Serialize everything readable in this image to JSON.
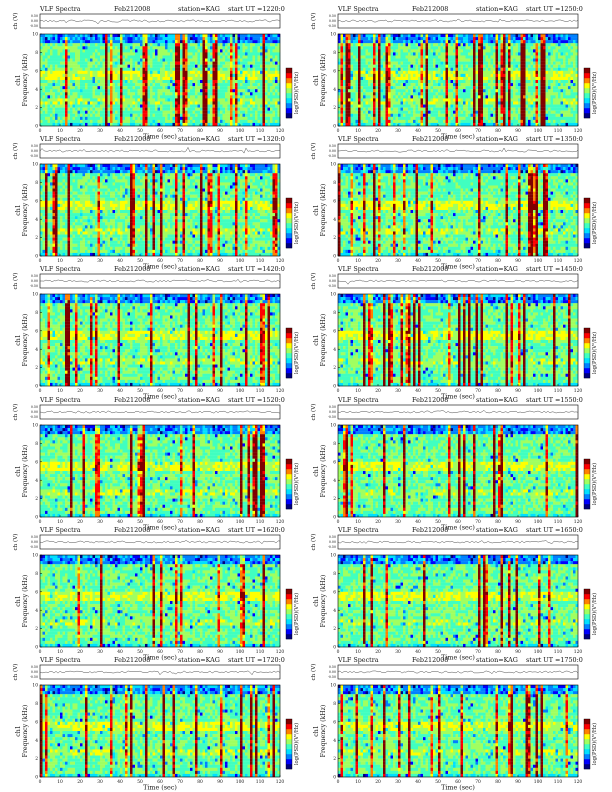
{
  "header_common": {
    "prefix": "VLF Spectra",
    "date": "Feb212008",
    "station": "station=KAG"
  },
  "chart_data": [
    {
      "type": "heatmap",
      "title_ut": "start UT =1220:0",
      "ylabel": "Frequency (kHz)",
      "ylabel_top": "ch1",
      "xlabel": "Time (sec)",
      "xlim": [
        0,
        120
      ],
      "ylim": [
        0,
        10
      ],
      "colorbar_label": "log(PSD)(V²/Hz)",
      "trace_ylabel": "ch (V)",
      "trace_ticks": [
        "0.50",
        "0.00",
        "-0.50"
      ],
      "xticks": [
        0,
        10,
        20,
        30,
        40,
        50,
        60,
        70,
        80,
        90,
        100,
        110,
        120
      ],
      "yticks": [
        0,
        2,
        4,
        6,
        8,
        10
      ]
    },
    {
      "type": "heatmap",
      "title_ut": "start UT =1250:0",
      "ylabel": "Frequency (kHz)",
      "ylabel_top": "ch1",
      "xlabel": "Time (sec)",
      "xlim": [
        0,
        120
      ],
      "ylim": [
        0,
        10
      ],
      "colorbar_label": "log(PSD)(V²/Hz)",
      "trace_ylabel": "ch (V)",
      "trace_ticks": [
        "0.50",
        "0.00",
        "-0.50"
      ],
      "xticks": [
        0,
        10,
        20,
        30,
        40,
        50,
        60,
        70,
        80,
        90,
        100,
        110,
        120
      ],
      "yticks": [
        0,
        2,
        4,
        6,
        8,
        10
      ]
    },
    {
      "type": "heatmap",
      "title_ut": "start UT =1320:0",
      "ylabel": "Frequency (kHz)",
      "ylabel_top": "ch1",
      "xlabel": "Time (sec)",
      "xlim": [
        0,
        120
      ],
      "ylim": [
        0,
        10
      ],
      "colorbar_label": "log(PSD)(V²/Hz)",
      "trace_ylabel": "ch (V)",
      "trace_ticks": [
        "0.50",
        "0.00",
        "-0.50"
      ],
      "xticks": [
        0,
        10,
        20,
        30,
        40,
        50,
        60,
        70,
        80,
        90,
        100,
        110,
        120
      ],
      "yticks": [
        0,
        2,
        4,
        6,
        8,
        10
      ]
    },
    {
      "type": "heatmap",
      "title_ut": "start UT =1350:0",
      "ylabel": "Frequency (kHz)",
      "ylabel_top": "ch1",
      "xlabel": "Time (sec)",
      "xlim": [
        0,
        120
      ],
      "ylim": [
        0,
        10
      ],
      "colorbar_label": "log(PSD)(V²/Hz)",
      "trace_ylabel": "ch (V)",
      "trace_ticks": [
        "0.50",
        "0.00",
        "-0.50"
      ],
      "xticks": [
        0,
        10,
        20,
        30,
        40,
        50,
        60,
        70,
        80,
        90,
        100,
        110,
        120
      ],
      "yticks": [
        0,
        2,
        4,
        6,
        8,
        10
      ]
    },
    {
      "type": "heatmap",
      "title_ut": "start UT =1420:0",
      "ylabel": "Frequency (kHz)",
      "ylabel_top": "ch1",
      "xlabel": "Time (sec)",
      "xlim": [
        0,
        120
      ],
      "ylim": [
        0,
        10
      ],
      "colorbar_label": "log(PSD)(V²/Hz)",
      "trace_ylabel": "ch (V)",
      "trace_ticks": [
        "0.50",
        "0.00",
        "-0.50"
      ],
      "xticks": [
        0,
        10,
        20,
        30,
        40,
        50,
        60,
        70,
        80,
        90,
        100,
        110,
        120
      ],
      "yticks": [
        0,
        2,
        4,
        6,
        8,
        10
      ]
    },
    {
      "type": "heatmap",
      "title_ut": "start UT =1450:0",
      "ylabel": "Frequency (kHz)",
      "ylabel_top": "ch1",
      "xlabel": "Time (sec)",
      "xlim": [
        0,
        120
      ],
      "ylim": [
        0,
        10
      ],
      "colorbar_label": "log(PSD)(V²/Hz)",
      "trace_ylabel": "ch (V)",
      "trace_ticks": [
        "0.50",
        "0.00",
        "-0.50"
      ],
      "xticks": [
        0,
        10,
        20,
        30,
        40,
        50,
        60,
        70,
        80,
        90,
        100,
        110,
        120
      ],
      "yticks": [
        0,
        2,
        4,
        6,
        8,
        10
      ]
    },
    {
      "type": "heatmap",
      "title_ut": "start UT =1520:0",
      "ylabel": "Frequency (kHz)",
      "ylabel_top": "ch1",
      "xlabel": "Time (sec)",
      "xlim": [
        0,
        120
      ],
      "ylim": [
        0,
        10
      ],
      "colorbar_label": "log(PSD)(V²/Hz)",
      "trace_ylabel": "ch (V)",
      "trace_ticks": [
        "0.50",
        "0.00",
        "-0.50"
      ],
      "xticks": [
        0,
        10,
        20,
        30,
        40,
        50,
        60,
        70,
        80,
        90,
        100,
        110,
        120
      ],
      "yticks": [
        0,
        2,
        4,
        6,
        8,
        10
      ]
    },
    {
      "type": "heatmap",
      "title_ut": "start UT =1550:0",
      "ylabel": "Frequency (kHz)",
      "ylabel_top": "ch1",
      "xlabel": "Time (sec)",
      "xlim": [
        0,
        120
      ],
      "ylim": [
        0,
        10
      ],
      "colorbar_label": "log(PSD)(V²/Hz)",
      "trace_ylabel": "ch (V)",
      "trace_ticks": [
        "0.50",
        "0.00",
        "-0.50"
      ],
      "xticks": [
        0,
        10,
        20,
        30,
        40,
        50,
        60,
        70,
        80,
        90,
        100,
        110,
        120
      ],
      "yticks": [
        0,
        2,
        4,
        6,
        8,
        10
      ]
    },
    {
      "type": "heatmap",
      "title_ut": "start UT =1620:0",
      "ylabel": "Frequency (kHz)",
      "ylabel_top": "ch1",
      "xlabel": "Time (sec)",
      "xlim": [
        0,
        120
      ],
      "ylim": [
        0,
        10
      ],
      "colorbar_label": "log(PSD)(V²/Hz)",
      "trace_ylabel": "ch (V)",
      "trace_ticks": [
        "0.50",
        "0.00",
        "-0.50"
      ],
      "xticks": [
        0,
        10,
        20,
        30,
        40,
        50,
        60,
        70,
        80,
        90,
        100,
        110,
        120
      ],
      "yticks": [
        0,
        2,
        4,
        6,
        8,
        10
      ]
    },
    {
      "type": "heatmap",
      "title_ut": "start UT =1650:0",
      "ylabel": "Frequency (kHz)",
      "ylabel_top": "ch1",
      "xlabel": "Time (sec)",
      "xlim": [
        0,
        120
      ],
      "ylim": [
        0,
        10
      ],
      "colorbar_label": "log(PSD)(V²/Hz)",
      "trace_ylabel": "ch (V)",
      "trace_ticks": [
        "0.50",
        "0.00",
        "-0.50"
      ],
      "xticks": [
        0,
        10,
        20,
        30,
        40,
        50,
        60,
        70,
        80,
        90,
        100,
        110,
        120
      ],
      "yticks": [
        0,
        2,
        4,
        6,
        8,
        10
      ]
    },
    {
      "type": "heatmap",
      "title_ut": "start UT =1720:0",
      "ylabel": "Frequency (kHz)",
      "ylabel_top": "ch1",
      "xlabel": "Time (sec)",
      "xlim": [
        0,
        120
      ],
      "ylim": [
        0,
        10
      ],
      "colorbar_label": "log(PSD)(V²/Hz)",
      "trace_ylabel": "ch (V)",
      "trace_ticks": [
        "0.50",
        "0.00",
        "-0.50"
      ],
      "xticks": [
        0,
        10,
        20,
        30,
        40,
        50,
        60,
        70,
        80,
        90,
        100,
        110,
        120
      ],
      "yticks": [
        0,
        2,
        4,
        6,
        8,
        10
      ]
    },
    {
      "type": "heatmap",
      "title_ut": "start UT =1750:0",
      "ylabel": "Frequency (kHz)",
      "ylabel_top": "ch1",
      "xlabel": "Time (sec)",
      "xlim": [
        0,
        120
      ],
      "ylim": [
        0,
        10
      ],
      "colorbar_label": "log(PSD)(V²/Hz)",
      "trace_ylabel": "ch (V)",
      "trace_ticks": [
        "0.50",
        "0.00",
        "-0.50"
      ],
      "xticks": [
        0,
        10,
        20,
        30,
        40,
        50,
        60,
        70,
        80,
        90,
        100,
        110,
        120
      ],
      "yticks": [
        0,
        2,
        4,
        6,
        8,
        10
      ]
    }
  ],
  "colormap": [
    "#000080",
    "#0000ff",
    "#0080ff",
    "#00e0ff",
    "#40ffc0",
    "#a0ff60",
    "#ffff00",
    "#ff8000",
    "#ff0000",
    "#800000"
  ]
}
